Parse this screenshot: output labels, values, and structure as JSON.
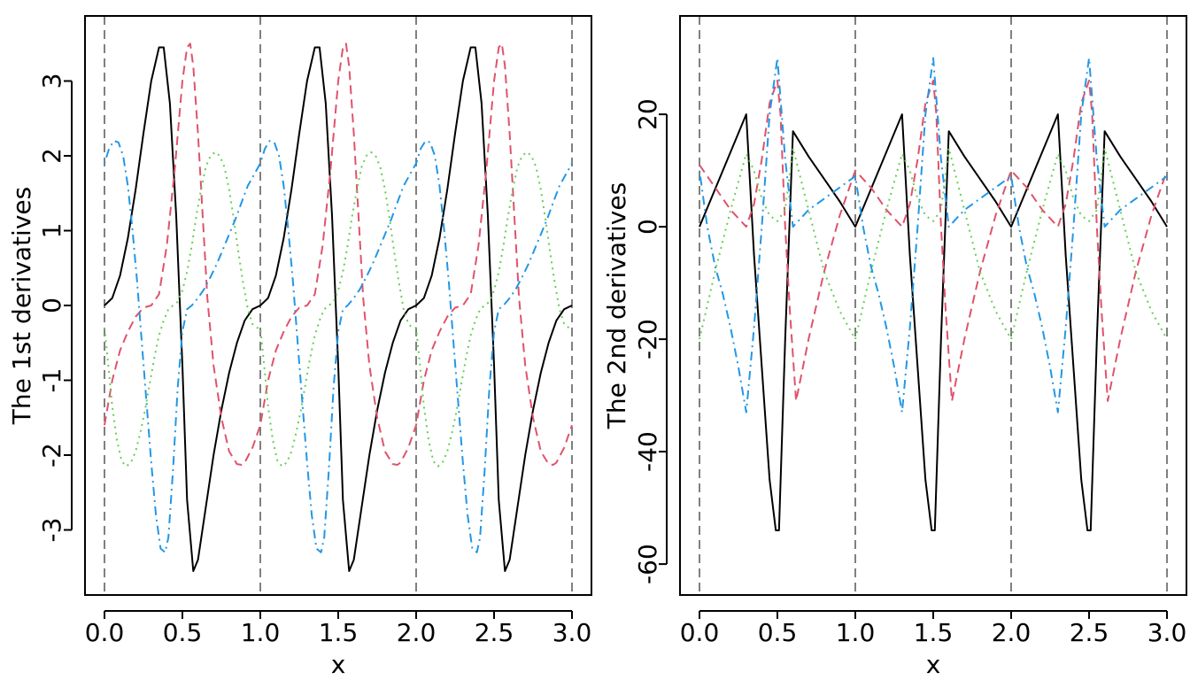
{
  "chart_data": [
    {
      "type": "line",
      "title": "",
      "xlabel": "x",
      "ylabel": "The 1st derivatives",
      "xlim": [
        -0.125,
        3.125
      ],
      "ylim": [
        -3.87,
        3.87
      ],
      "xticks": [
        "0.0",
        "0.5",
        "1.0",
        "1.5",
        "2.0",
        "2.5",
        "3.0"
      ],
      "yticks": [
        "-3",
        "-2",
        "-1",
        "0",
        "1",
        "2",
        "3"
      ],
      "vlines": [
        0,
        1,
        2,
        3
      ],
      "grid": false,
      "legend": "none",
      "series": [
        {
          "color": "#000000",
          "dash": "solid",
          "x": [
            0,
            0.05,
            0.1,
            0.15,
            0.2,
            0.25,
            0.3,
            0.35,
            0.38,
            0.42,
            0.46,
            0.5,
            0.53,
            0.57,
            0.6,
            0.65,
            0.7,
            0.75,
            0.8,
            0.85,
            0.9,
            0.95,
            1.0
          ],
          "y": [
            0,
            0.1,
            0.4,
            0.9,
            1.55,
            2.3,
            3.0,
            3.45,
            3.45,
            2.7,
            1.2,
            -0.8,
            -2.6,
            -3.55,
            -3.4,
            -2.7,
            -2.0,
            -1.4,
            -0.9,
            -0.5,
            -0.2,
            -0.05,
            0
          ]
        },
        {
          "color": "#DF536B",
          "dash": "dashed",
          "x": [
            0,
            0.05,
            0.1,
            0.15,
            0.2,
            0.25,
            0.3,
            0.35,
            0.4,
            0.45,
            0.5,
            0.53,
            0.55,
            0.57,
            0.6,
            0.63,
            0.66,
            0.7,
            0.75,
            0.8,
            0.85,
            0.88,
            0.9,
            0.95,
            1.0
          ],
          "y": [
            -1.6,
            -1.0,
            -0.6,
            -0.35,
            -0.15,
            -0.03,
            0,
            0.15,
            0.8,
            1.8,
            3.0,
            3.45,
            3.5,
            3.2,
            2.3,
            1.2,
            0.1,
            -0.8,
            -1.5,
            -1.95,
            -2.12,
            -2.13,
            -2.1,
            -1.9,
            -1.6
          ]
        },
        {
          "color": "#61D04F",
          "dash": "dotted",
          "x": [
            0,
            0.02,
            0.05,
            0.08,
            0.11,
            0.14,
            0.17,
            0.2,
            0.23,
            0.26,
            0.29,
            0.32,
            0.35,
            0.38,
            0.41,
            0.44,
            0.47,
            0.5,
            0.53,
            0.56,
            0.59,
            0.62,
            0.65,
            0.68,
            0.71,
            0.74,
            0.77,
            0.8,
            0.83,
            0.86,
            0.89,
            0.92,
            0.95,
            0.98,
            1.0
          ],
          "y": [
            -0.3,
            -0.7,
            -1.35,
            -1.8,
            -2.08,
            -2.15,
            -2.1,
            -1.95,
            -1.7,
            -1.4,
            -1.05,
            -0.7,
            -0.4,
            -0.2,
            -0.05,
            0,
            0.05,
            0.2,
            0.45,
            0.8,
            1.2,
            1.55,
            1.85,
            2.0,
            2.05,
            2.0,
            1.85,
            1.55,
            1.15,
            0.7,
            0.3,
            -0.05,
            -0.25,
            -0.3,
            -0.3
          ]
        },
        {
          "color": "#2297E6",
          "dash": "dotdash",
          "x": [
            0,
            0.03,
            0.06,
            0.09,
            0.12,
            0.15,
            0.18,
            0.21,
            0.24,
            0.27,
            0.3,
            0.33,
            0.36,
            0.39,
            0.41,
            0.44,
            0.47,
            0.5,
            0.53,
            0.56,
            0.6,
            0.64,
            0.68,
            0.72,
            0.76,
            0.8,
            0.84,
            0.88,
            0.92,
            0.96,
            1.0
          ],
          "y": [
            1.9,
            2.1,
            2.2,
            2.18,
            2.0,
            1.6,
            1.0,
            0.3,
            -0.5,
            -1.3,
            -2.1,
            -2.8,
            -3.25,
            -3.3,
            -3.1,
            -2.2,
            -1.1,
            -0.35,
            -0.05,
            0,
            0.1,
            0.22,
            0.38,
            0.55,
            0.75,
            0.95,
            1.15,
            1.38,
            1.6,
            1.75,
            1.9
          ]
        }
      ]
    },
    {
      "type": "line",
      "title": "",
      "xlabel": "x",
      "ylabel": "The 2nd derivatives",
      "xlim": [
        -0.125,
        3.125
      ],
      "ylim": [
        -65.5,
        37.5
      ],
      "xticks": [
        "0.0",
        "0.5",
        "1.0",
        "1.5",
        "2.0",
        "2.5",
        "3.0"
      ],
      "yticks": [
        "-60",
        "-40",
        "-20",
        "0",
        "20"
      ],
      "vlines": [
        0,
        1,
        2,
        3
      ],
      "grid": false,
      "legend": "none",
      "series": [
        {
          "color": "#000000",
          "dash": "solid",
          "x": [
            0,
            0.3,
            0.35,
            0.4,
            0.45,
            0.49,
            0.51,
            0.55,
            0.6,
            0.7,
            0.8,
            0.9,
            1.0
          ],
          "y": [
            0,
            20,
            -5,
            -25,
            -45,
            -54,
            -54,
            -20,
            17,
            12.5,
            8.5,
            4.5,
            0
          ]
        },
        {
          "color": "#DF536B",
          "dash": "dashed",
          "x": [
            0,
            0.1,
            0.2,
            0.3,
            0.35,
            0.4,
            0.45,
            0.5,
            0.52,
            0.55,
            0.58,
            0.62,
            0.7,
            0.8,
            0.9,
            1.0
          ],
          "y": [
            11,
            7,
            3,
            0,
            4,
            12,
            22,
            26,
            20,
            0,
            -15,
            -31,
            -20,
            -8,
            2,
            10
          ]
        },
        {
          "color": "#61D04F",
          "dash": "dotted",
          "x": [
            0,
            0.1,
            0.2,
            0.3,
            0.35,
            0.4,
            0.45,
            0.5,
            0.55,
            0.6,
            0.7,
            0.8,
            0.9,
            1.0
          ],
          "y": [
            -20,
            -8,
            3,
            13,
            10,
            5,
            2,
            1,
            3,
            14,
            3,
            -8,
            -15,
            -20
          ]
        },
        {
          "color": "#2297E6",
          "dash": "dotdash",
          "x": [
            0,
            0.05,
            0.1,
            0.15,
            0.2,
            0.25,
            0.3,
            0.35,
            0.4,
            0.45,
            0.5,
            0.55,
            0.6,
            0.7,
            0.8,
            0.9,
            1.0
          ],
          "y": [
            10,
            0,
            -7,
            -12,
            -18,
            -25,
            -33,
            -18,
            0,
            20,
            30,
            12,
            0,
            3,
            5,
            7,
            9
          ]
        }
      ]
    }
  ]
}
